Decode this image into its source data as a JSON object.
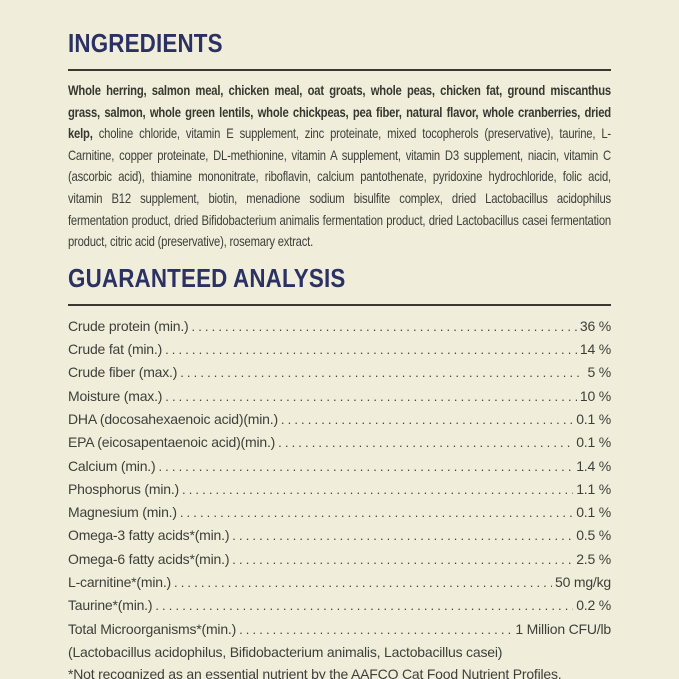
{
  "page": {
    "background_color": "#f0eedb",
    "accent_navy": "#2b3163",
    "body_text_color": "#3f3e39",
    "divider_color": "#3a3831"
  },
  "ingredients": {
    "title": "INGREDIENTS",
    "bold_text": "Whole herring, salmon meal, chicken meal, oat groats, whole peas, chicken fat, ground miscanthus grass, salmon, whole green lentils, whole chickpeas, pea fiber, natural flavor, whole cranberries, dried kelp, ",
    "regular_text": "choline chloride, vitamin E supplement, zinc proteinate, mixed tocopherols (preservative), taurine, L-Carnitine, copper proteinate, DL-methionine, vitamin A supplement, vitamin D3 supplement, niacin, vitamin C (ascorbic acid), thiamine mononitrate, riboflavin, calcium pantothenate, pyridoxine hydrochloride, folic acid, vitamin B12 supplement, biotin, menadione sodium bisulfite complex, dried Lactobacillus acidophilus fermentation product, dried Bifidobacterium animalis fermentation product, dried Lactobacillus casei fermentation product, citric acid (preservative), rosemary extract."
  },
  "guaranteed_analysis": {
    "title": "GUARANTEED ANALYSIS",
    "rows": [
      {
        "label": "Crude protein (min.)",
        "value": "36 %"
      },
      {
        "label": "Crude fat (min.)",
        "value": "14 %"
      },
      {
        "label": "Crude fiber (max.)",
        "value": "5 %"
      },
      {
        "label": "Moisture (max.)",
        "value": "10 %"
      },
      {
        "label": "DHA (docosahexaenoic acid)(min.)",
        "value": "0.1 %"
      },
      {
        "label": "EPA (eicosapentaenoic acid)(min.)",
        "value": "0.1 %"
      },
      {
        "label": "Calcium (min.)",
        "value": "1.4 %"
      },
      {
        "label": "Phosphorus (min.)",
        "value": "1.1 %"
      },
      {
        "label": "Magnesium (min.)",
        "value": "0.1 %"
      },
      {
        "label": "Omega-3 fatty acids*(min.)",
        "value": "0.5 %"
      },
      {
        "label": "Omega-6 fatty acids*(min.)",
        "value": "2.5 %"
      },
      {
        "label": "L-carnitine*(min.)",
        "value": "50 mg/kg"
      },
      {
        "label": "Taurine*(min.)",
        "value": "0.2 %"
      },
      {
        "label": "Total Microorganisms*(min.)",
        "value": "1 Million CFU/lb"
      }
    ],
    "probiotics_note": "(Lactobacillus acidophilus, Bifidobacterium animalis, Lactobacillus casei)",
    "footnote": "*Not recognized as an essential nutrient by the AAFCO Cat Food Nutrient Profiles."
  }
}
